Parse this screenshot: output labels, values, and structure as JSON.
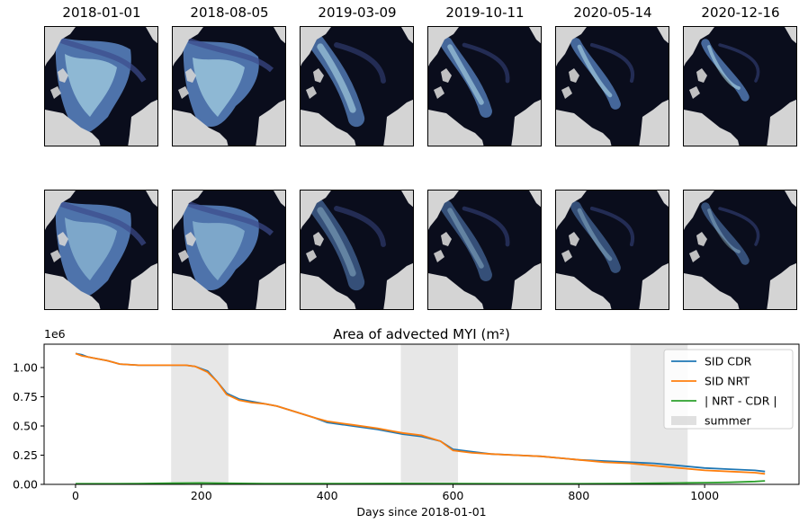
{
  "panels": {
    "dates": [
      "2018-01-01",
      "2018-08-05",
      "2019-03-09",
      "2019-10-11",
      "2020-05-14",
      "2020-12-16"
    ],
    "colors": {
      "land": "#d4d4d4",
      "ocean": "#0a0d1c",
      "ice_low": "#3c4b8c",
      "ice_mid": "#5a86c4",
      "ice_high": "#b9e6f0"
    }
  },
  "chart_data": {
    "type": "line",
    "title": "Area of advected MYI (m²)",
    "xlabel": "Days since 2018-01-01",
    "ylabel": "",
    "y_scale_label": "1e6",
    "xlim": [
      -50,
      1150
    ],
    "ylim": [
      0,
      1.2
    ],
    "xticks": [
      0,
      200,
      400,
      600,
      800,
      1000
    ],
    "yticks": [
      0.0,
      0.25,
      0.5,
      0.75,
      1.0
    ],
    "legend_position": "upper right",
    "summer_spans": [
      [
        152,
        243
      ],
      [
        517,
        608
      ],
      [
        882,
        973
      ]
    ],
    "series": [
      {
        "name": "SID CDR",
        "color": "#1f77b4",
        "x": [
          0,
          10,
          20,
          30,
          50,
          70,
          100,
          130,
          152,
          175,
          190,
          210,
          225,
          240,
          260,
          280,
          300,
          320,
          350,
          380,
          400,
          440,
          480,
          500,
          520,
          550,
          580,
          600,
          630,
          660,
          700,
          740,
          780,
          800,
          840,
          880,
          920,
          960,
          1000,
          1040,
          1080,
          1096
        ],
        "y": [
          1.12,
          1.11,
          1.09,
          1.08,
          1.06,
          1.03,
          1.02,
          1.02,
          1.02,
          1.02,
          1.01,
          0.97,
          0.88,
          0.78,
          0.73,
          0.71,
          0.69,
          0.67,
          0.62,
          0.57,
          0.53,
          0.5,
          0.47,
          0.45,
          0.43,
          0.41,
          0.37,
          0.3,
          0.28,
          0.26,
          0.25,
          0.24,
          0.22,
          0.21,
          0.2,
          0.19,
          0.18,
          0.16,
          0.14,
          0.13,
          0.12,
          0.11
        ]
      },
      {
        "name": "SID NRT",
        "color": "#ff7f0e",
        "x": [
          0,
          10,
          20,
          30,
          50,
          70,
          100,
          130,
          152,
          175,
          190,
          210,
          225,
          240,
          260,
          280,
          300,
          320,
          350,
          380,
          400,
          440,
          480,
          500,
          520,
          550,
          580,
          600,
          630,
          660,
          700,
          740,
          780,
          800,
          840,
          880,
          920,
          960,
          1000,
          1040,
          1080,
          1096
        ],
        "y": [
          1.12,
          1.1,
          1.09,
          1.08,
          1.06,
          1.03,
          1.02,
          1.02,
          1.02,
          1.02,
          1.01,
          0.96,
          0.88,
          0.77,
          0.72,
          0.7,
          0.69,
          0.67,
          0.62,
          0.57,
          0.54,
          0.51,
          0.48,
          0.46,
          0.44,
          0.42,
          0.37,
          0.29,
          0.27,
          0.26,
          0.25,
          0.24,
          0.22,
          0.21,
          0.19,
          0.18,
          0.16,
          0.14,
          0.12,
          0.11,
          0.1,
          0.09
        ]
      },
      {
        "name": "| NRT - CDR |",
        "color": "#2ca02c",
        "x": [
          0,
          100,
          152,
          200,
          243,
          300,
          400,
          500,
          600,
          700,
          800,
          880,
          960,
          1000,
          1040,
          1080,
          1096
        ],
        "y": [
          0.005,
          0.006,
          0.01,
          0.012,
          0.009,
          0.007,
          0.006,
          0.008,
          0.006,
          0.005,
          0.005,
          0.008,
          0.012,
          0.015,
          0.018,
          0.025,
          0.03
        ]
      }
    ],
    "legend_entries": [
      "SID CDR",
      "SID NRT",
      "| NRT - CDR |",
      "summer"
    ]
  }
}
